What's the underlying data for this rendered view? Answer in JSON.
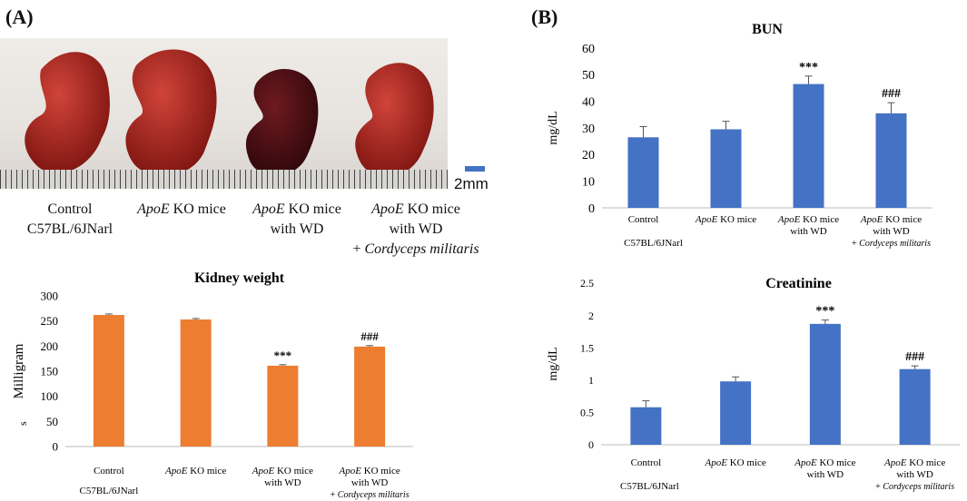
{
  "panels": {
    "a": "(A)",
    "b": "(B)"
  },
  "photo": {
    "scale_bar": "2mm",
    "captions": [
      {
        "line1": "Control",
        "line2": "C57BL/6JNarl",
        "line3": ""
      },
      {
        "line1_italic": "ApoE",
        "line1": " KO mice",
        "line2": "",
        "line3": ""
      },
      {
        "line1_italic": "ApoE",
        "line1": " KO mice",
        "line2": "with WD",
        "line3": ""
      },
      {
        "line1_italic": "ApoE",
        "line1": " KO mice",
        "line2": "with WD",
        "line3_prefix": "+ ",
        "line3_italic": "Cordyceps militaris"
      }
    ]
  },
  "colors": {
    "orange": "#ed7d31",
    "blue": "#4472c4"
  },
  "chart_data": [
    {
      "id": "kidney",
      "type": "bar",
      "title": "Kidney weight",
      "ylabel": "Milligram",
      "ylabel_suffix": "s",
      "ylim": [
        0,
        300
      ],
      "ticks": [
        "0",
        "50",
        "100",
        "150",
        "200",
        "250",
        "300"
      ],
      "tick_values": [
        0,
        50,
        100,
        150,
        200,
        250,
        300
      ],
      "categories": [
        "Control",
        "ApoE KO mice",
        "ApoE KO mice with WD",
        "ApoE KO mice with WD + Cordyceps militaris"
      ],
      "values": [
        262,
        253,
        161,
        199
      ],
      "errors": [
        2,
        2,
        2,
        2
      ],
      "annotations": [
        "",
        "",
        "***",
        "###"
      ]
    },
    {
      "id": "bun",
      "type": "bar",
      "title": "BUN",
      "ylabel": "mg/dL",
      "ylim": [
        0,
        60
      ],
      "ticks": [
        "0",
        "10",
        "20",
        "30",
        "40",
        "50",
        "60"
      ],
      "tick_values": [
        0,
        10,
        20,
        30,
        40,
        50,
        60
      ],
      "categories": [
        "Control",
        "ApoE KO mice",
        "ApoE KO mice with WD",
        "ApoE KO mice with WD + Cordyceps militaris"
      ],
      "values": [
        26.5,
        29.5,
        46.5,
        35.5
      ],
      "errors": [
        4,
        3,
        3,
        4
      ],
      "annotations": [
        "",
        "",
        "***",
        "###"
      ]
    },
    {
      "id": "creat",
      "type": "bar",
      "title": "Creatinine",
      "ylabel": "mg/dL",
      "ylim": [
        0,
        2.5
      ],
      "ticks": [
        "0",
        "0.5",
        "1",
        "1.5",
        "2",
        "2.5"
      ],
      "tick_values": [
        0,
        0.5,
        1,
        1.5,
        2,
        2.5
      ],
      "categories": [
        "Control",
        "ApoE KO mice",
        "ApoE KO mice with WD",
        "ApoE KO mice with WD + Cordyceps militaris"
      ],
      "values": [
        0.58,
        0.98,
        1.87,
        1.17
      ],
      "errors": [
        0.1,
        0.07,
        0.06,
        0.05
      ],
      "annotations": [
        "",
        "",
        "***",
        "###"
      ]
    }
  ],
  "axis_labels": {
    "control_1": "Control",
    "control_2": "C57BL/6JNarl",
    "apoe": "ApoE",
    "ko_mice": " KO mice",
    "with_wd": "with WD",
    "plus": "+ ",
    "cordyceps": "Cordyceps militaris"
  }
}
